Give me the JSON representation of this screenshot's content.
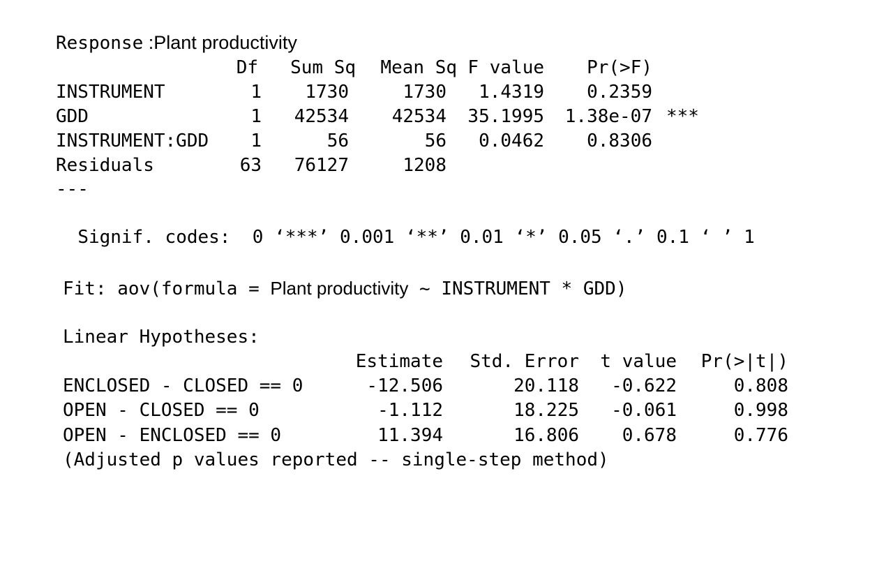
{
  "anova": {
    "response_label": "Response",
    "response_colon": " :",
    "response_value": "Plant productivity",
    "headers": [
      "Df",
      "Sum Sq",
      "Mean Sq",
      "F value",
      "Pr(>F)"
    ],
    "rows": [
      {
        "term": "INSTRUMENT",
        "df": "1",
        "sum_sq": "1730",
        "mean_sq": "1730",
        "f_value": "1.4319",
        "p_value": "0.2359",
        "signif": ""
      },
      {
        "term": "GDD",
        "df": "1",
        "sum_sq": "42534",
        "mean_sq": "42534",
        "f_value": "35.1995",
        "p_value": "1.38e-07",
        "signif": "***"
      },
      {
        "term": "INSTRUMENT:GDD",
        "df": "1",
        "sum_sq": "56",
        "mean_sq": "56",
        "f_value": "0.0462",
        "p_value": "0.8306",
        "signif": ""
      },
      {
        "term": "Residuals",
        "df": "63",
        "sum_sq": "76127",
        "mean_sq": "1208",
        "f_value": "",
        "p_value": "",
        "signif": ""
      }
    ],
    "separator": "---",
    "signif_label": "Signif. codes:",
    "signif_codes": "0 ‘***’ 0.001 ‘**’ 0.01 ‘*’ 0.05 ‘.’ 0.1 ‘ ’ 1"
  },
  "glht": {
    "fit_prefix": "Fit: aov(formula = ",
    "fit_response": "Plant productivity",
    "fit_suffix": " ~ INSTRUMENT * GDD)",
    "title": "Linear Hypotheses:",
    "headers": [
      "Estimate",
      "Std. Error",
      "t value",
      "Pr(>|t|)"
    ],
    "rows": [
      {
        "hypothesis": "ENCLOSED - CLOSED == 0",
        "estimate": "-12.506",
        "std_error": "20.118",
        "t_value": "-0.622",
        "p_value": "0.808"
      },
      {
        "hypothesis": "OPEN - CLOSED == 0",
        "estimate": "-1.112",
        "std_error": "18.225",
        "t_value": "-0.061",
        "p_value": "0.998"
      },
      {
        "hypothesis": "OPEN - ENCLOSED == 0",
        "estimate": "11.394",
        "std_error": "16.806",
        "t_value": "0.678",
        "p_value": "0.776"
      }
    ],
    "note": "(Adjusted p values reported -- single-step method)"
  }
}
